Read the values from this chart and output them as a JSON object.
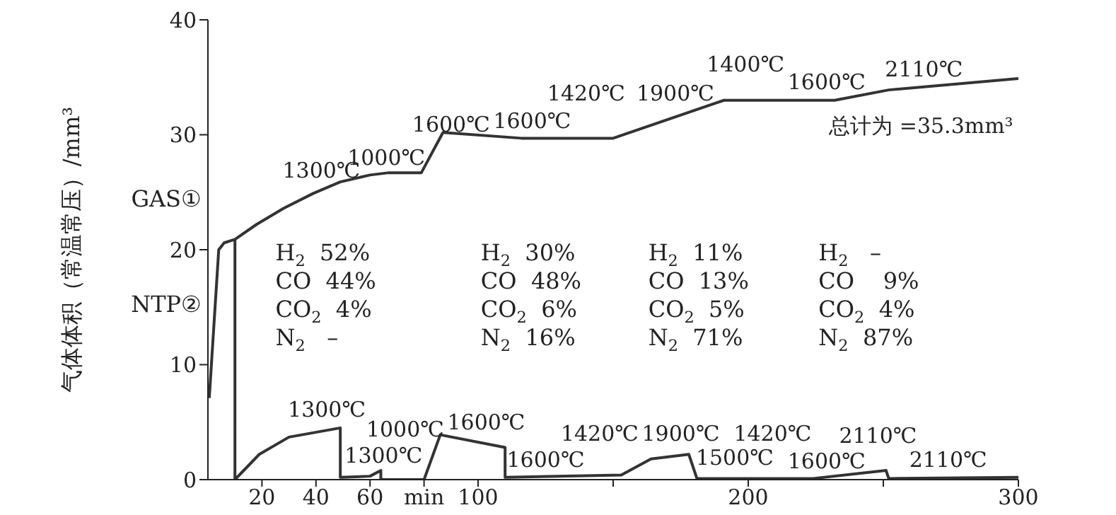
{
  "chart_data": {
    "type": "line",
    "ylabel": "气体体积（常温常压）/mm³",
    "xlim": [
      0,
      300
    ],
    "ylim": [
      0,
      40
    ],
    "xticks": [
      20,
      40,
      60,
      {
        "value": 80,
        "label": "min"
      },
      100,
      {
        "value": 150,
        "label": null
      },
      200,
      {
        "value": 250,
        "label": null
      },
      300
    ],
    "yticks": [
      0,
      10,
      20,
      30,
      40
    ],
    "marker": "none",
    "line_style": "solid",
    "series": [
      {
        "color": "#333333",
        "x": [
          0.5,
          4,
          6,
          10,
          18,
          28,
          39,
          49,
          60,
          67,
          79,
          87,
          116,
          150,
          191,
          232,
          252,
          300
        ],
        "values": [
          7.1,
          20.0,
          20.6,
          20.9,
          22.2,
          23.6,
          24.9,
          25.9,
          26.5,
          26.7,
          26.7,
          30.2,
          29.7,
          29.7,
          33.0,
          33.0,
          33.9,
          34.9
        ]
      },
      {
        "color": "#333333",
        "x": [
          10,
          10,
          19,
          30,
          49,
          49,
          60,
          64,
          64,
          80,
          86,
          110,
          110,
          153,
          164,
          178,
          181,
          224,
          251,
          252,
          300
        ],
        "values": [
          20.9,
          0,
          2.2,
          3.7,
          4.5,
          0.2,
          0.3,
          0.8,
          0,
          0,
          3.9,
          2.8,
          0.2,
          0.4,
          1.8,
          2.2,
          0.1,
          0.1,
          0.8,
          0.1,
          0.2
        ]
      }
    ],
    "annotations": [
      "GAS①",
      "NTP②",
      "1300℃",
      "1000℃",
      "1600℃",
      "1600℃",
      "1420℃",
      "1900℃",
      "1400℃",
      "1600℃",
      "2110℃",
      "总计为 =35.3mm³",
      "1300℃",
      "1000℃",
      "1300℃",
      "1600℃",
      "1600℃",
      "1420℃",
      "1900℃",
      "1420℃",
      "1500℃",
      "1600℃",
      "2110℃",
      "2110℃",
      "H$_{2}$  52%",
      "CO  44%",
      "CO$_{2}$  4%",
      "N$_{2}$   –",
      "H$_{2}$  30%",
      "CO  48%",
      "CO$_{2}$  6%",
      "N$_{2}$  16%",
      "H$_{2}$  11%",
      "CO  13%",
      "CO$_{2}$  5%",
      "N$_{2}$  71%",
      "H$_{2}$   –",
      "CO    9%",
      "CO$_{2}$  4%",
      "N$_{2}$  87%"
    ]
  }
}
